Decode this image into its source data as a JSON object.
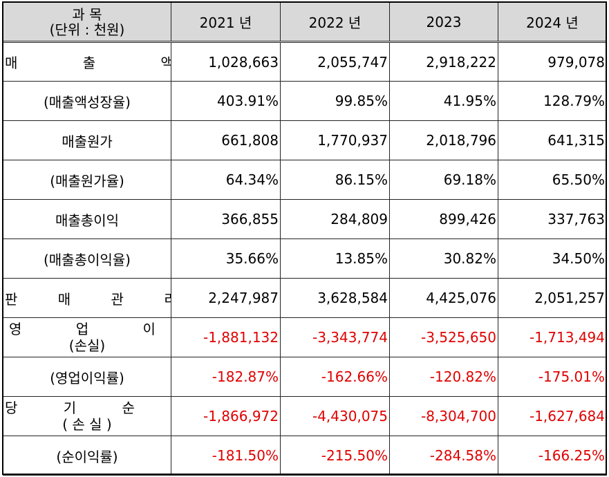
{
  "header": {
    "title_line1": "과 목",
    "title_line2": "(단위 : 천원)",
    "years": [
      "2021 년",
      "2022 년",
      "2023",
      "2024 년"
    ]
  },
  "rows": [
    {
      "label": "매 출 액",
      "values": [
        "1,028,663",
        "2,055,747",
        "2,918,222",
        "979,078"
      ],
      "negative": false
    },
    {
      "label": "(매출액성장율)",
      "values": [
        "403.91%",
        "99.85%",
        "41.95%",
        "128.79%"
      ],
      "negative": false
    },
    {
      "label": "매출원가",
      "values": [
        "661,808",
        "1,770,937",
        "2,018,796",
        "641,315"
      ],
      "negative": false
    },
    {
      "label": "(매출원가율)",
      "values": [
        "64.34%",
        "86.15%",
        "69.18%",
        "65.50%"
      ],
      "negative": false
    },
    {
      "label": "매출총이익",
      "values": [
        "366,855",
        "284,809",
        "899,426",
        "337,763"
      ],
      "negative": false
    },
    {
      "label": "(매출총이익율)",
      "values": [
        "35.66%",
        "13.85%",
        "30.82%",
        "34.50%"
      ],
      "negative": false
    },
    {
      "label": "판 매 관 리 비",
      "values": [
        "2,247,987",
        "3,628,584",
        "4,425,076",
        "2,051,257"
      ],
      "negative": false
    },
    {
      "label_line1": "영 업 이 익",
      "label_line2": "(손실)",
      "values": [
        "-1,881,132",
        "-3,343,774",
        "-3,525,650",
        "-1,713,494"
      ],
      "negative": true
    },
    {
      "label": "(영업이익률)",
      "values": [
        "-182.87%",
        "-162.66%",
        "-120.82%",
        "-175.01%"
      ],
      "negative": true
    },
    {
      "label_line1": "당 기 순 이 익",
      "label_line2": "( 손 실 )",
      "values": [
        "-1,866,972",
        "-4,430,075",
        "-8,304,700",
        "-1,627,684"
      ],
      "negative": true
    },
    {
      "label": "(순이익률)",
      "values": [
        "-181.50%",
        "-215.50%",
        "-284.58%",
        "-166.25%"
      ],
      "negative": true
    }
  ],
  "colors": {
    "header_bg": "#d9d9d9",
    "negative": "#e00000",
    "border": "#222222"
  }
}
